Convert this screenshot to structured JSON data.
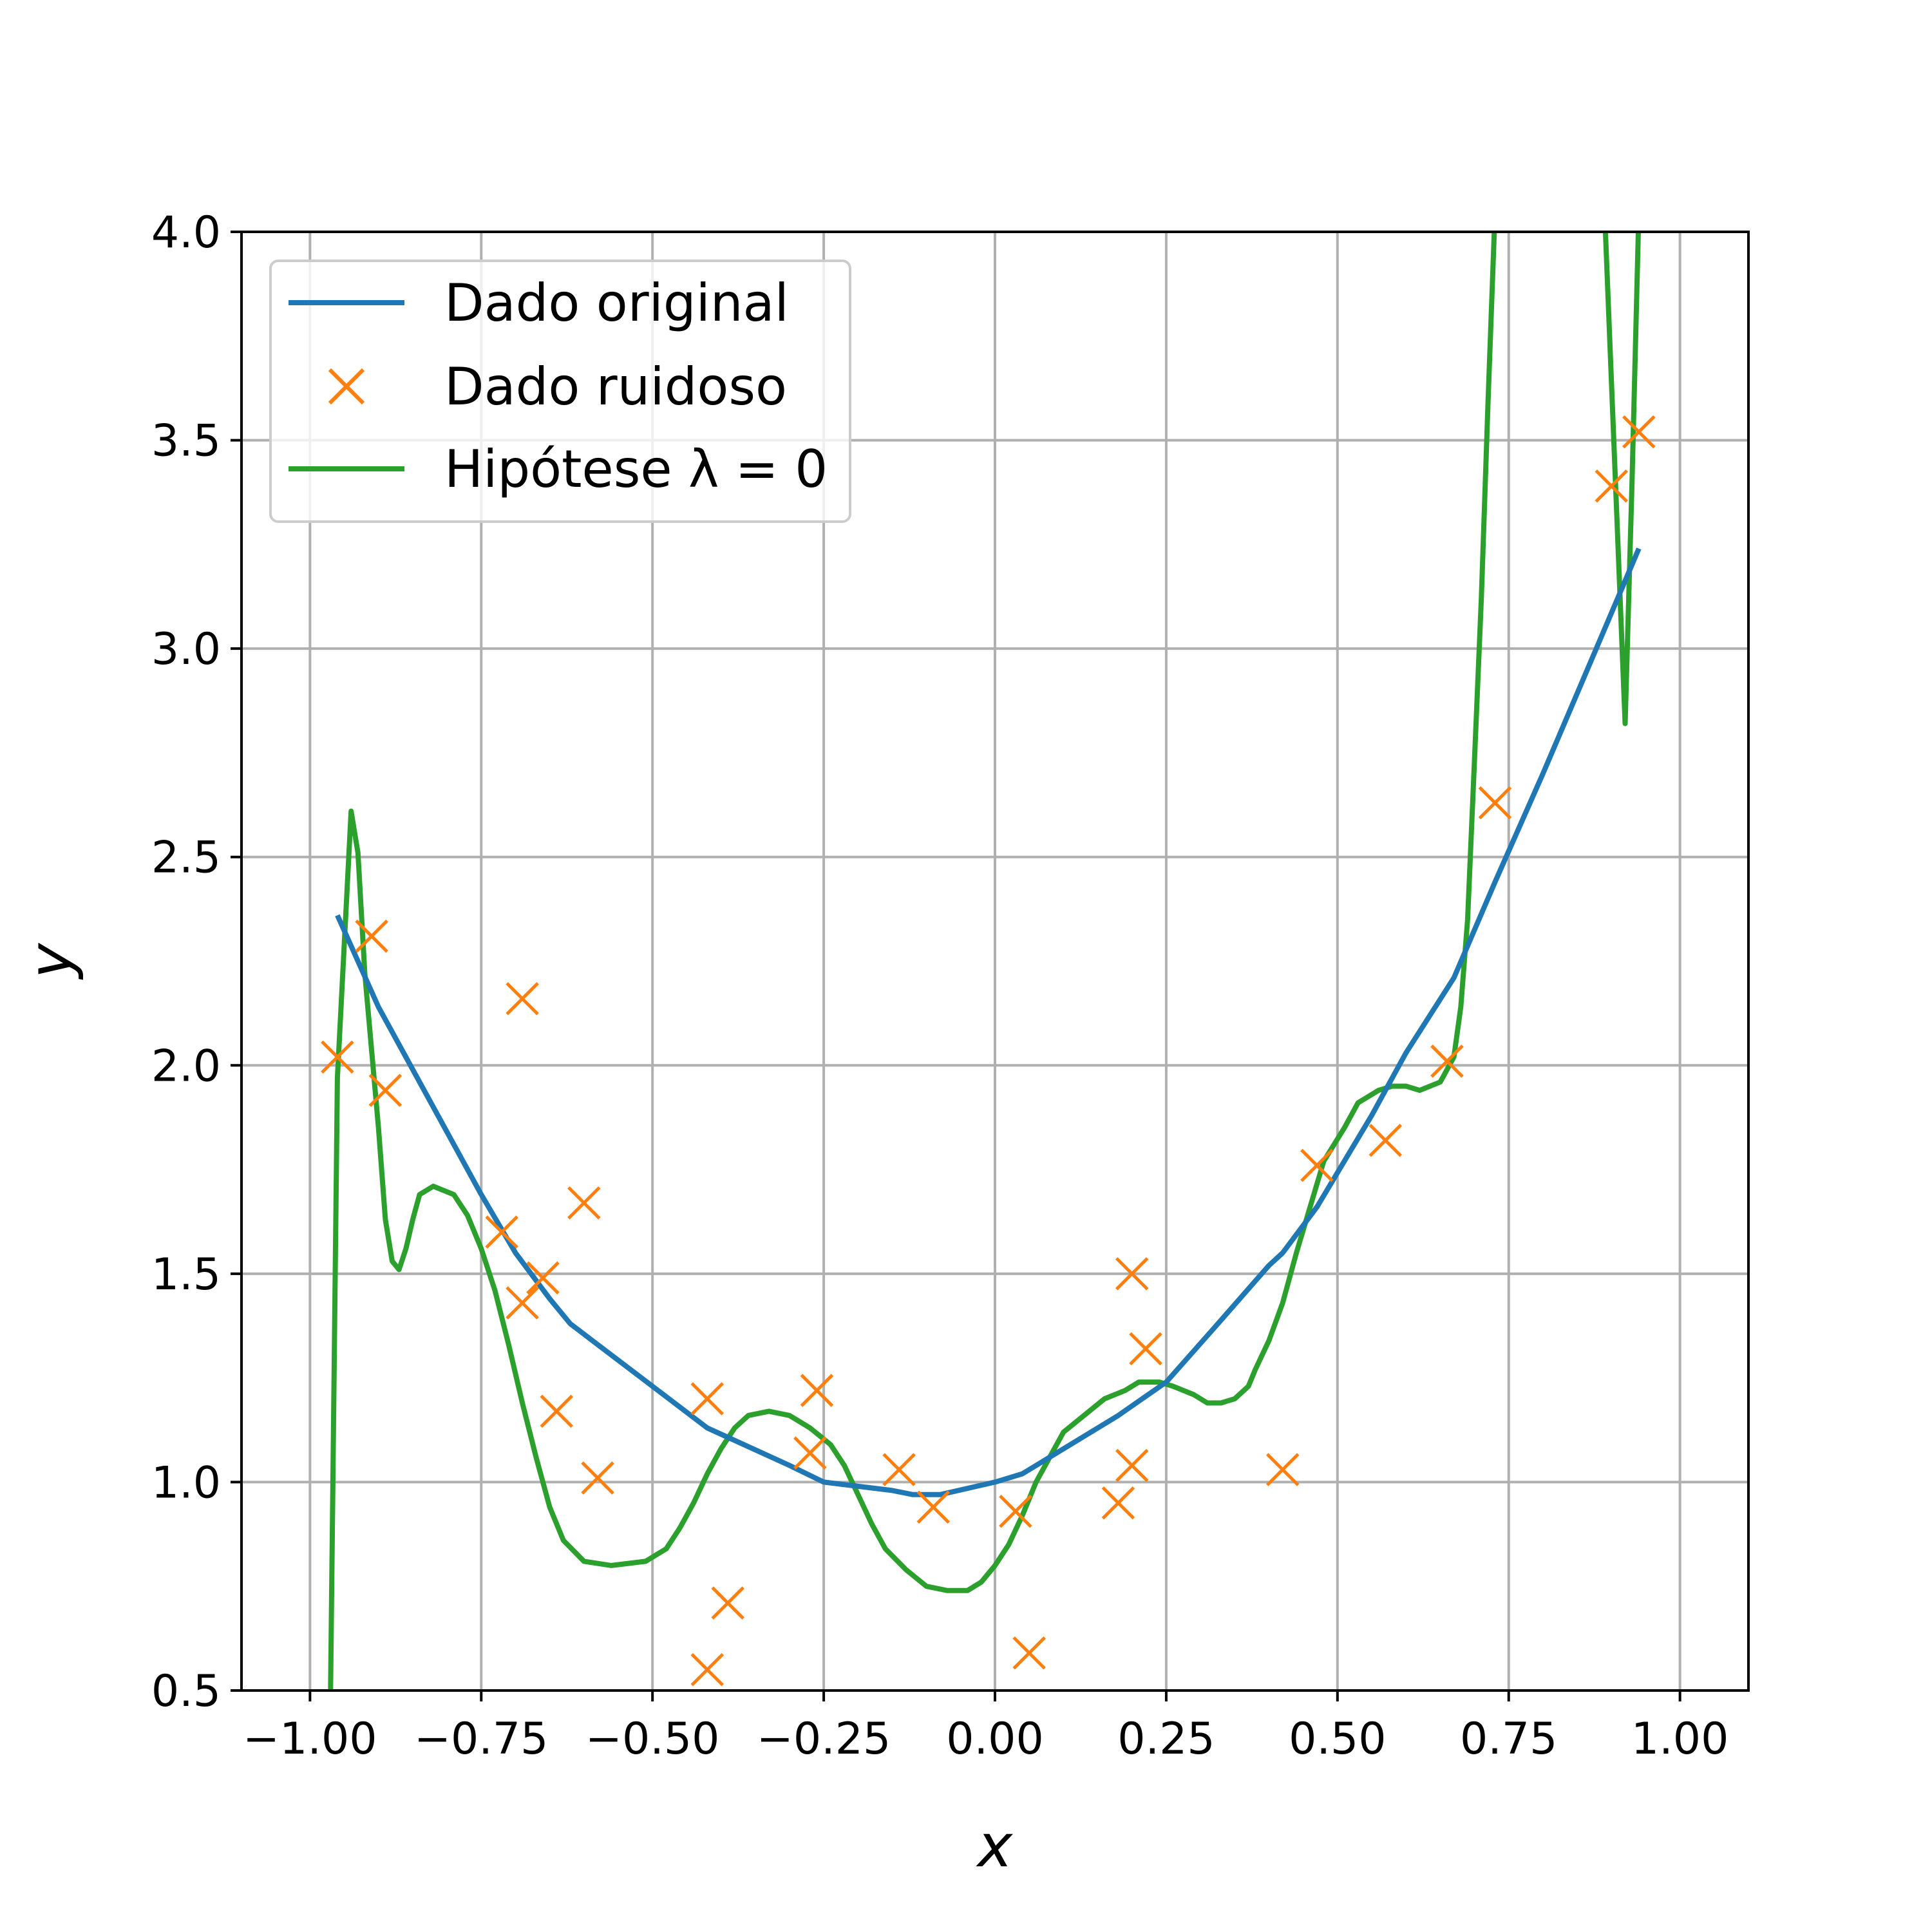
{
  "chart_data": {
    "type": "line",
    "xlabel": "x",
    "ylabel": "y",
    "xlim": [
      -1.1,
      1.1
    ],
    "ylim": [
      0.5,
      4.0
    ],
    "xticks": [
      "−1.00",
      "−0.75",
      "−0.50",
      "−0.25",
      "0.00",
      "0.25",
      "0.50",
      "0.75",
      "1.00"
    ],
    "xtick_values": [
      -1.0,
      -0.75,
      -0.5,
      -0.25,
      0.0,
      0.25,
      0.5,
      0.75,
      1.0
    ],
    "yticks": [
      "0.5",
      "1.0",
      "1.5",
      "2.0",
      "2.5",
      "3.0",
      "3.5",
      "4.0"
    ],
    "ytick_values": [
      0.5,
      1.0,
      1.5,
      2.0,
      2.5,
      3.0,
      3.5,
      4.0
    ],
    "grid": true,
    "legend_position": "top-left",
    "colors": {
      "original": "#1f77b4",
      "noisy": "#ff7f0e",
      "hypothesis": "#2ca02c",
      "grid": "#b0b0b0"
    },
    "series": [
      {
        "name": "Dado original",
        "kind": "line",
        "x": [
          -0.96,
          -0.93,
          -0.9,
          -0.85,
          -0.8,
          -0.75,
          -0.7,
          -0.65,
          -0.62,
          -0.58,
          -0.5,
          -0.42,
          -0.38,
          -0.3,
          -0.25,
          -0.2,
          -0.15,
          -0.12,
          -0.08,
          0.0,
          0.04,
          0.1,
          0.18,
          0.25,
          0.32,
          0.4,
          0.42,
          0.47,
          0.55,
          0.6,
          0.67,
          0.73,
          0.8,
          0.87,
          0.94
        ],
        "y": [
          2.36,
          2.25,
          2.14,
          1.99,
          1.84,
          1.69,
          1.55,
          1.44,
          1.38,
          1.33,
          1.23,
          1.13,
          1.1,
          1.04,
          1.0,
          0.99,
          0.98,
          0.97,
          0.97,
          1.0,
          1.02,
          1.08,
          1.16,
          1.24,
          1.37,
          1.52,
          1.55,
          1.66,
          1.88,
          2.03,
          2.21,
          2.44,
          2.7,
          2.97,
          3.24
        ]
      },
      {
        "name": "Dado ruidoso",
        "kind": "scatter",
        "x": [
          -0.96,
          -0.91,
          -0.89,
          -0.72,
          -0.69,
          -0.69,
          -0.66,
          -0.64,
          -0.6,
          -0.58,
          -0.42,
          -0.42,
          -0.39,
          -0.27,
          -0.26,
          -0.14,
          -0.09,
          0.03,
          0.05,
          0.18,
          0.2,
          0.2,
          0.22,
          0.42,
          0.47,
          0.57,
          0.66,
          0.73,
          0.9,
          0.94
        ],
        "y": [
          2.02,
          2.31,
          1.94,
          1.6,
          1.43,
          2.16,
          1.49,
          1.17,
          1.67,
          1.01,
          1.2,
          0.55,
          0.71,
          1.07,
          1.22,
          1.03,
          0.94,
          0.93,
          0.59,
          0.95,
          1.04,
          1.5,
          1.32,
          1.03,
          1.76,
          1.82,
          2.01,
          2.63,
          3.39,
          3.52
        ]
      },
      {
        "name": "Hipótese λ = 0",
        "kind": "line",
        "x": [
          -0.97,
          -0.96,
          -0.94,
          -0.93,
          -0.92,
          -0.9,
          -0.89,
          -0.88,
          -0.87,
          -0.86,
          -0.85,
          -0.84,
          -0.82,
          -0.79,
          -0.77,
          -0.75,
          -0.73,
          -0.71,
          -0.69,
          -0.67,
          -0.65,
          -0.63,
          -0.6,
          -0.56,
          -0.51,
          -0.48,
          -0.46,
          -0.44,
          -0.42,
          -0.4,
          -0.38,
          -0.36,
          -0.33,
          -0.3,
          -0.27,
          -0.24,
          -0.22,
          -0.2,
          -0.18,
          -0.16,
          -0.13,
          -0.1,
          -0.07,
          -0.04,
          -0.02,
          0.0,
          0.02,
          0.04,
          0.06,
          0.08,
          0.1,
          0.13,
          0.16,
          0.19,
          0.21,
          0.24,
          0.26,
          0.29,
          0.31,
          0.33,
          0.35,
          0.37,
          0.38,
          0.4,
          0.42,
          0.44,
          0.46,
          0.48,
          0.51,
          0.53,
          0.56,
          0.58,
          0.6,
          0.62,
          0.65,
          0.67,
          0.68,
          0.69,
          0.7,
          0.71,
          0.72,
          0.73,
          0.74,
          0.75,
          0.76,
          0.78,
          0.79,
          0.8,
          0.89,
          0.92,
          0.93,
          0.94,
          0.95
        ],
        "y": [
          0.5,
          1.97,
          2.61,
          2.51,
          2.22,
          1.85,
          1.63,
          1.53,
          1.51,
          1.56,
          1.63,
          1.69,
          1.71,
          1.69,
          1.64,
          1.56,
          1.46,
          1.33,
          1.19,
          1.06,
          0.94,
          0.86,
          0.81,
          0.8,
          0.81,
          0.84,
          0.89,
          0.95,
          1.02,
          1.08,
          1.13,
          1.16,
          1.17,
          1.16,
          1.13,
          1.09,
          1.04,
          0.97,
          0.9,
          0.84,
          0.79,
          0.75,
          0.74,
          0.74,
          0.76,
          0.8,
          0.85,
          0.92,
          1.0,
          1.06,
          1.12,
          1.16,
          1.2,
          1.22,
          1.24,
          1.24,
          1.23,
          1.21,
          1.19,
          1.19,
          1.2,
          1.23,
          1.27,
          1.34,
          1.43,
          1.55,
          1.66,
          1.77,
          1.85,
          1.91,
          1.94,
          1.95,
          1.95,
          1.94,
          1.96,
          2.02,
          2.14,
          2.35,
          2.73,
          3.12,
          3.6,
          4.05,
          4.05,
          4.05,
          4.05,
          4.05,
          4.05,
          4.05,
          4.05,
          2.82,
          3.4,
          4.05,
          4.05
        ]
      }
    ]
  }
}
